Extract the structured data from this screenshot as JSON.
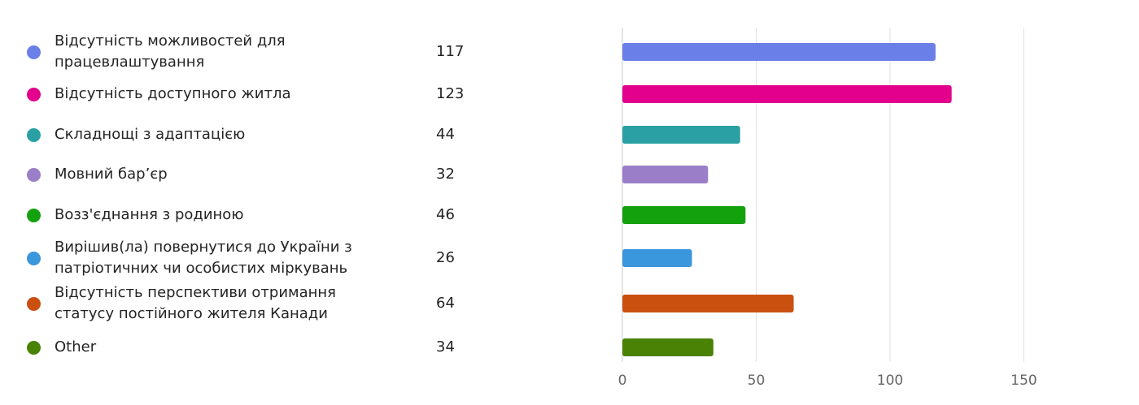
{
  "legend": {
    "items": [
      {
        "label": "Відсутність можливостей для працевлаштування",
        "count": "117",
        "color": "#6b7fe8"
      },
      {
        "label": "Відсутність доступного житла",
        "count": "123",
        "color": "#e3008c"
      },
      {
        "label": "Складнощі з адаптацією",
        "count": "44",
        "color": "#2aa0a4"
      },
      {
        "label": "Мовний бар’єр",
        "count": "32",
        "color": "#9b7ec8"
      },
      {
        "label": "Возз'єднання з родиною",
        "count": "46",
        "color": "#13a10e"
      },
      {
        "label": "Вирішив(ла) повернутися до України з патріотичних чи особистих міркувань",
        "count": "26",
        "color": "#3a96dd"
      },
      {
        "label": "Відсутність перспективи отримання статусу постійного жителя Канади",
        "count": "64",
        "color": "#ca5010"
      },
      {
        "label": "Other",
        "count": "34",
        "color": "#498205"
      }
    ]
  },
  "chart_data": {
    "type": "bar",
    "orientation": "horizontal",
    "categories": [
      "Відсутність можливостей для працевлаштування",
      "Відсутність доступного житла",
      "Складнощі з адаптацією",
      "Мовний бар’єр",
      "Возз'єднання з родиною",
      "Вирішив(ла) повернутися до України з патріотичних чи особистих міркувань",
      "Відсутність перспективи отримання статусу постійного жителя Канади",
      "Other"
    ],
    "values": [
      117,
      123,
      44,
      32,
      46,
      26,
      64,
      34
    ],
    "colors": [
      "#6b7fe8",
      "#e3008c",
      "#2aa0a4",
      "#9b7ec8",
      "#13a10e",
      "#3a96dd",
      "#ca5010",
      "#498205"
    ],
    "xlim": [
      0,
      180
    ],
    "xticks": [
      "0",
      "50",
      "100",
      "150"
    ],
    "grid": true,
    "legend_position": "left"
  }
}
